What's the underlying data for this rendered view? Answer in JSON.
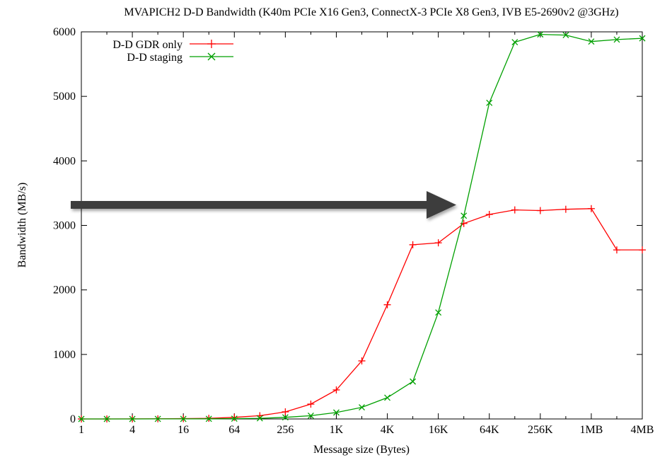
{
  "chart_data": {
    "type": "line",
    "title": "MVAPICH2 D-D Bandwidth (K40m PCIe X16 Gen3, ConnectX-3 PCIe X8 Gen3, IVB E5-2690v2 @3GHz)",
    "xlabel": "Message size (Bytes)",
    "ylabel": "Bandwidth (MB/s)",
    "x_scale": "log2",
    "x": [
      "1",
      "2",
      "4",
      "8",
      "16",
      "32",
      "64",
      "128",
      "256",
      "512",
      "1K",
      "2K",
      "4K",
      "8K",
      "16K",
      "32K",
      "64K",
      "128K",
      "256K",
      "512K",
      "1MB",
      "2MB",
      "4MB"
    ],
    "x_ticks": [
      "1",
      "4",
      "16",
      "64",
      "256",
      "1K",
      "4K",
      "16K",
      "64K",
      "256K",
      "1MB",
      "4MB"
    ],
    "ylim": [
      0,
      6000
    ],
    "y_ticks": [
      0,
      1000,
      2000,
      3000,
      4000,
      5000,
      6000
    ],
    "legend_position": "top-left",
    "grid": false,
    "series": [
      {
        "name": "D-D GDR only",
        "color": "#ff0000",
        "marker": "plus",
        "values": [
          0,
          0,
          1,
          2,
          5,
          10,
          25,
          50,
          110,
          230,
          450,
          900,
          1770,
          2700,
          2730,
          3030,
          3170,
          3240,
          3230,
          3250,
          3260,
          2620,
          2620
        ]
      },
      {
        "name": "D-D staging",
        "color": "#00a000",
        "marker": "cross",
        "values": [
          0,
          0,
          0,
          1,
          1,
          2,
          5,
          10,
          25,
          50,
          100,
          180,
          330,
          580,
          1650,
          3150,
          4900,
          5840,
          5960,
          5950,
          5850,
          5880,
          5900
        ]
      }
    ]
  }
}
